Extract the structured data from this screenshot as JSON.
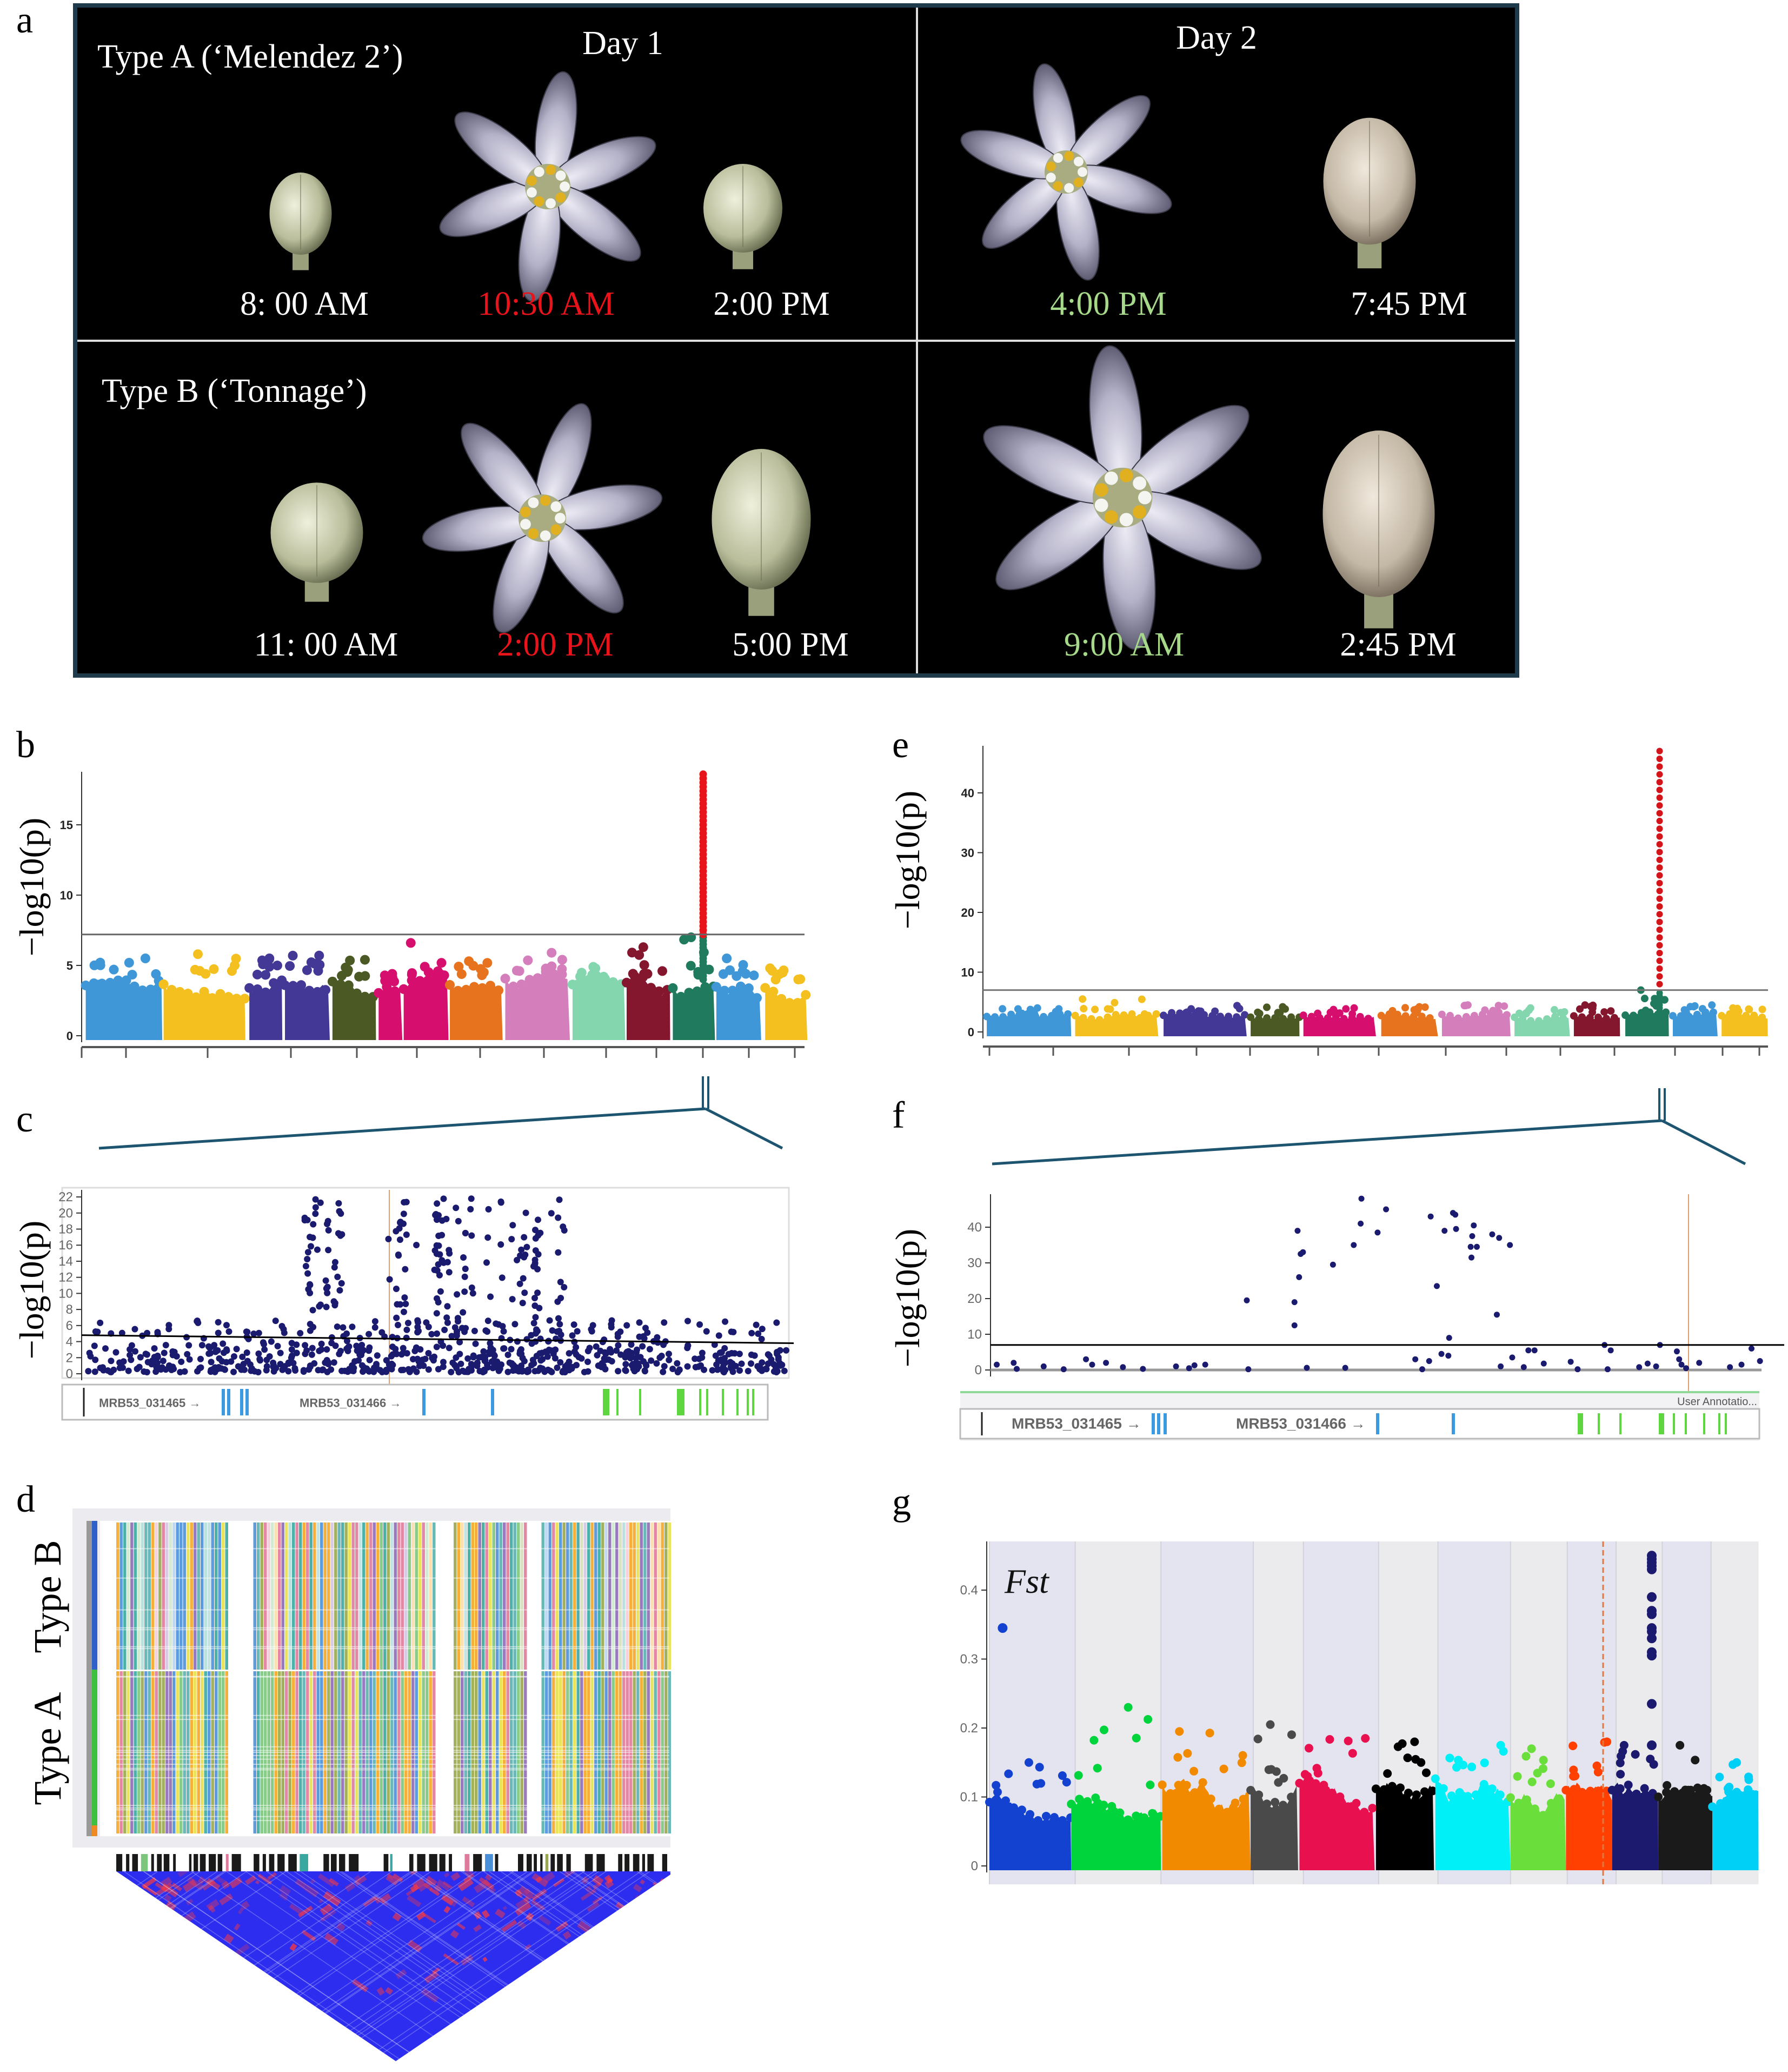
{
  "panel_a": {
    "label": "a",
    "row_a_title": "Type A  (‘Melendez 2’)",
    "row_b_title": "Type B (‘Tonnage’)",
    "day1": "Day 1",
    "day2": "Day 2",
    "row_a_times": [
      {
        "text": "8: 00 AM",
        "color": "#ffffff"
      },
      {
        "text": "10:30 AM",
        "color": "#e8131b"
      },
      {
        "text": "2:00 PM",
        "color": "#ffffff"
      },
      {
        "text": "4:00 PM",
        "color": "#a6d98a"
      },
      {
        "text": "7:45 PM",
        "color": "#ffffff"
      }
    ],
    "row_b_times": [
      {
        "text": "11: 00 AM",
        "color": "#ffffff"
      },
      {
        "text": "2:00 PM",
        "color": "#e8131b"
      },
      {
        "text": "5:00 PM",
        "color": "#ffffff"
      },
      {
        "text": "9:00 AM",
        "color": "#a6d98a"
      },
      {
        "text": "2:45 PM",
        "color": "#ffffff"
      }
    ]
  },
  "panel_d": {
    "label": "d",
    "group_top": "Type B",
    "group_bottom": "Type A",
    "group_colors": {
      "Type B": "#2f5fc8",
      "Type A": "#3cc040"
    },
    "ld_colors": {
      "low": "#2d2df0",
      "high": "#ff3a3a"
    }
  },
  "chart_data": [
    {
      "panel_label": "b",
      "type": "manhattan",
      "ylabel": "−log10(p)",
      "ylim": [
        0,
        19
      ],
      "yticks": [
        0,
        5,
        10,
        15
      ],
      "threshold": 7.2,
      "grid": false,
      "chromosomes": [
        {
          "color": "#3f97d8",
          "bulk": 4.2,
          "max": 5.5
        },
        {
          "color": "#f4c020",
          "bulk": 4.4,
          "max": 5.8
        },
        {
          "color": "#433896",
          "bulk": 4.3,
          "max": 5.5
        },
        {
          "color": "#433896",
          "bulk": 4.6,
          "max": 5.7
        },
        {
          "color": "#4b5a25",
          "bulk": 4.2,
          "max": 5.4
        },
        {
          "color": "#d60e6e",
          "bulk": 3.8,
          "max": 4.4
        },
        {
          "color": "#d60e6e",
          "bulk": 4.3,
          "max": 6.6
        },
        {
          "color": "#e8731e",
          "bulk": 4.3,
          "max": 5.3
        },
        {
          "color": "#d47fbb",
          "bulk": 4.6,
          "max": 5.9
        },
        {
          "color": "#84d6ae",
          "bulk": 4.2,
          "max": 4.9
        },
        {
          "color": "#84162e",
          "bulk": 4.4,
          "max": 6.3
        },
        {
          "color": "#1f7a5e",
          "bulk": 4.3,
          "max": 7.0
        },
        {
          "color": "#3f97d8",
          "bulk": 4.2,
          "max": 5.5
        },
        {
          "color": "#f4c020",
          "bulk": 3.9,
          "max": 4.8
        }
      ],
      "peak": {
        "chromosome_index": 11,
        "from": 7.2,
        "max": 18.8,
        "color": "#e8141b"
      }
    },
    {
      "panel_label": "c",
      "type": "scatter",
      "ylabel": "−log10(p)",
      "ylim": [
        0,
        22
      ],
      "yticks": [
        0,
        2,
        4,
        6,
        8,
        10,
        12,
        14,
        16,
        18,
        20,
        22
      ],
      "threshold_line": [
        4.8,
        3.8
      ],
      "max": 22,
      "point_color": "#1a1a6e",
      "genes": [
        "MRB53_031465",
        "MRB53_031466"
      ],
      "exon_colors": [
        "#3b9ae0",
        "#5ed640"
      ]
    },
    {
      "panel_label": "e",
      "type": "manhattan",
      "ylabel": "−log10(p)",
      "ylim": [
        0,
        48
      ],
      "yticks": [
        0,
        10,
        20,
        30,
        40
      ],
      "threshold": 7,
      "grid": false,
      "chromosomes": [
        {
          "color": "#3f97d8",
          "bulk": 3.0,
          "max": 4.0
        },
        {
          "color": "#f4c020",
          "bulk": 3.0,
          "max": 5.5
        },
        {
          "color": "#433896",
          "bulk": 3.2,
          "max": 4.4
        },
        {
          "color": "#4b5a25",
          "bulk": 3.0,
          "max": 4.2
        },
        {
          "color": "#d60e6e",
          "bulk": 3.0,
          "max": 4.0
        },
        {
          "color": "#e8731e",
          "bulk": 3.2,
          "max": 4.2
        },
        {
          "color": "#d47fbb",
          "bulk": 3.3,
          "max": 4.5
        },
        {
          "color": "#84d6ae",
          "bulk": 3.0,
          "max": 4.0
        },
        {
          "color": "#84162e",
          "bulk": 3.3,
          "max": 4.5
        },
        {
          "color": "#1f7a5e",
          "bulk": 3.3,
          "max": 7.0
        },
        {
          "color": "#3f97d8",
          "bulk": 3.3,
          "max": 4.5
        },
        {
          "color": "#f4c020",
          "bulk": 3.0,
          "max": 4.0
        }
      ],
      "peak": {
        "chromosome_index": 9,
        "from": 7,
        "max": 47.5,
        "color": "#d4141b"
      }
    },
    {
      "panel_label": "f",
      "type": "scatter",
      "ylabel": "−log10(p)",
      "ylim": [
        0,
        48
      ],
      "yticks": [
        0,
        10,
        20,
        30,
        40
      ],
      "threshold": 7,
      "point_color": "#1a1a6e",
      "points": [
        [
          331,
          19.5
        ],
        [
          393,
          19
        ],
        [
          393,
          12.5
        ],
        [
          397,
          39
        ],
        [
          399,
          26
        ],
        [
          401,
          32.5
        ],
        [
          404,
          33
        ],
        [
          443,
          29.5
        ],
        [
          470,
          35
        ],
        [
          479,
          41
        ],
        [
          480,
          48
        ],
        [
          501,
          38.5
        ],
        [
          512,
          45
        ],
        [
          570,
          43
        ],
        [
          578,
          23.5
        ],
        [
          584,
          4.5
        ],
        [
          588,
          39
        ],
        [
          593,
          4
        ],
        [
          594,
          9
        ],
        [
          599,
          44
        ],
        [
          602,
          43.5
        ],
        [
          603,
          39.5
        ],
        [
          622,
          34.5
        ],
        [
          623,
          31.5
        ],
        [
          624,
          37.5
        ],
        [
          626,
          40.5
        ],
        [
          630,
          34.5
        ],
        [
          650,
          38
        ],
        [
          656,
          15.5
        ],
        [
          659,
          37
        ],
        [
          673,
          35
        ],
        [
          676,
          3.5
        ],
        [
          697,
          5.5
        ],
        [
          705,
          5.5
        ],
        [
          796,
          7
        ],
        [
          804,
          5.5
        ],
        [
          868,
          7
        ],
        [
          890,
          5.2
        ],
        [
          893,
          3
        ],
        [
          987,
          6
        ],
        [
          998,
          2.5
        ],
        [
          6,
          1.5
        ],
        [
          28,
          2
        ],
        [
          32,
          0.3
        ],
        [
          67,
          1
        ],
        [
          93,
          0.2
        ],
        [
          122,
          3
        ],
        [
          130,
          1.5
        ],
        [
          148,
          2
        ],
        [
          170,
          0.8
        ],
        [
          196,
          0.3
        ],
        [
          239,
          1
        ],
        [
          256,
          0.5
        ],
        [
          263,
          1.3
        ],
        [
          277,
          1.5
        ],
        [
          333,
          0.2
        ],
        [
          409,
          0.6
        ],
        [
          459,
          0.6
        ],
        [
          550,
          3
        ],
        [
          559,
          0.2
        ],
        [
          568,
          2.5
        ],
        [
          661,
          1
        ],
        [
          691,
          0.8
        ],
        [
          717,
          1.8
        ],
        [
          752,
          2.3
        ],
        [
          761,
          0.2
        ],
        [
          800,
          0.2
        ],
        [
          841,
          0.8
        ],
        [
          852,
          1.8
        ],
        [
          863,
          1
        ],
        [
          896,
          1.5
        ],
        [
          902,
          0.5
        ],
        [
          919,
          2
        ],
        [
          959,
          0.8
        ],
        [
          974,
          1.5
        ]
      ],
      "genes": [
        "MRB53_031465",
        "MRB53_031466"
      ],
      "track_label": "User Annotatio...",
      "exon_colors": [
        "#3b9ae0",
        "#5ed640"
      ]
    },
    {
      "panel_label": "g",
      "type": "manhattan",
      "title": "Fst",
      "ylim": [
        0,
        0.46
      ],
      "yticks": [
        0,
        0.1,
        0.2,
        0.3,
        0.4
      ],
      "grid": false,
      "chromosomes": [
        {
          "color": "#1342d0",
          "bulk": 0.11,
          "max": 0.15
        },
        {
          "color": "#00d43c",
          "bulk": 0.11,
          "max": 0.23
        },
        {
          "color": "#f28a00",
          "bulk": 0.13,
          "max": 0.195
        },
        {
          "color": "#4a4a4a",
          "bulk": 0.12,
          "max": 0.205
        },
        {
          "color": "#e8104e",
          "bulk": 0.13,
          "max": 0.185
        },
        {
          "color": "#000000",
          "bulk": 0.13,
          "max": 0.18
        },
        {
          "color": "#00f0f8",
          "bulk": 0.14,
          "max": 0.175
        },
        {
          "color": "#6ade3a",
          "bulk": 0.11,
          "max": 0.17
        },
        {
          "color": "#ff4000",
          "bulk": 0.13,
          "max": 0.18
        },
        {
          "color": "#1b1a6e",
          "bulk": 0.13,
          "max": 0.175
        },
        {
          "color": "#1a1a1a",
          "bulk": 0.11,
          "max": 0.175
        },
        {
          "color": "#00d0f5",
          "bulk": 0.11,
          "max": 0.15
        }
      ],
      "outliers": [
        {
          "chromosome_index": 0,
          "value": 0.345
        }
      ],
      "peak": {
        "chromosome_index": 9,
        "values": [
          0.45,
          0.445,
          0.44,
          0.435,
          0.43,
          0.39,
          0.37,
          0.365,
          0.345,
          0.34,
          0.33,
          0.31,
          0.305,
          0.235,
          0.175
        ],
        "color": "#1b1a6e"
      }
    }
  ]
}
